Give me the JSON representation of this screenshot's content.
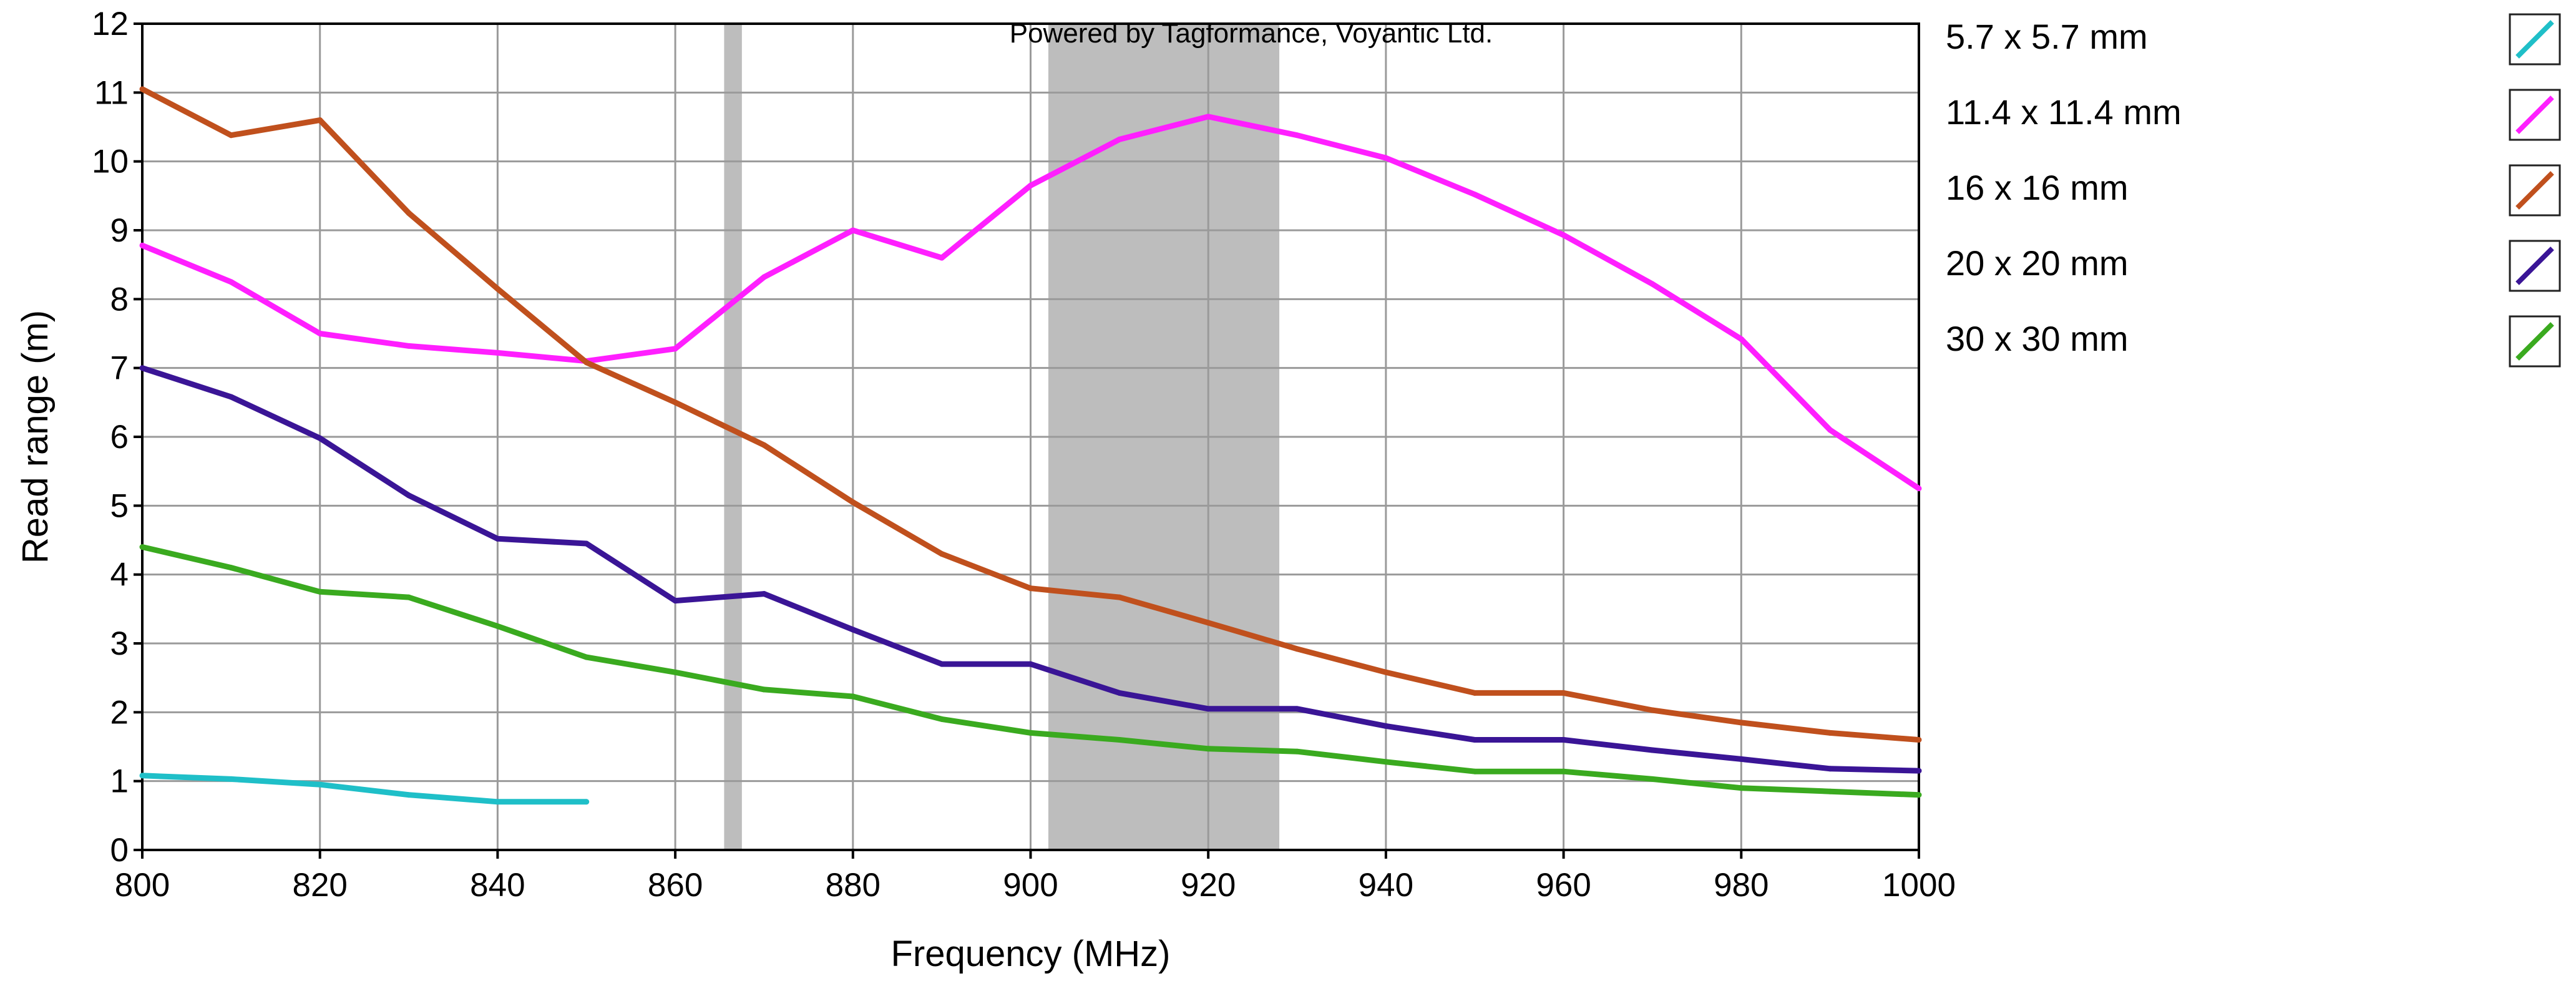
{
  "chart_data": {
    "type": "line",
    "credit": "Powered by Tagformance, Voyantic Ltd.",
    "xlabel": "Frequency (MHz)",
    "ylabel": "Read range (m)",
    "xlim": [
      800,
      1000
    ],
    "ylim": [
      0,
      12
    ],
    "x_ticks": [
      800,
      820,
      840,
      860,
      880,
      900,
      920,
      940,
      960,
      980,
      1000
    ],
    "y_ticks": [
      0,
      1,
      2,
      3,
      4,
      5,
      6,
      7,
      8,
      9,
      10,
      11,
      12
    ],
    "grid": true,
    "legend_position": "right",
    "shaded_bands": [
      {
        "from": 865.5,
        "to": 867.5
      },
      {
        "from": 902,
        "to": 928
      }
    ],
    "series": [
      {
        "name": "5.7 x 5.7 mm",
        "color": "#1fbfc8",
        "x": [
          800,
          810,
          820,
          830,
          840,
          850
        ],
        "values": [
          1.08,
          1.03,
          0.95,
          0.8,
          0.7,
          0.7
        ]
      },
      {
        "name": "11.4 x 11.4 mm",
        "color": "#ff1fff",
        "x": [
          800,
          810,
          820,
          830,
          840,
          850,
          860,
          870,
          880,
          890,
          900,
          910,
          920,
          930,
          940,
          950,
          960,
          970,
          980,
          990,
          1000
        ],
        "values": [
          8.78,
          8.25,
          7.5,
          7.32,
          7.22,
          7.1,
          7.28,
          8.32,
          9.0,
          8.6,
          9.65,
          10.32,
          10.65,
          10.38,
          10.05,
          9.52,
          8.93,
          8.22,
          7.42,
          6.1,
          5.25
        ]
      },
      {
        "name": "16 x 16 mm",
        "color": "#c0501d",
        "x": [
          800,
          810,
          820,
          830,
          840,
          850,
          860,
          870,
          880,
          890,
          900,
          910,
          920,
          930,
          940,
          950,
          960,
          970,
          980,
          990,
          1000
        ],
        "values": [
          11.05,
          10.38,
          10.6,
          9.25,
          8.15,
          7.08,
          6.5,
          5.88,
          5.05,
          4.3,
          3.8,
          3.67,
          3.3,
          2.92,
          2.58,
          2.28,
          2.28,
          2.03,
          1.85,
          1.7,
          1.6
        ]
      },
      {
        "name": "20 x 20 mm",
        "color": "#3a1596",
        "x": [
          800,
          810,
          820,
          830,
          840,
          850,
          860,
          870,
          880,
          890,
          900,
          910,
          920,
          930,
          940,
          950,
          960,
          970,
          980,
          990,
          1000
        ],
        "values": [
          7.0,
          6.58,
          5.98,
          5.15,
          4.52,
          4.45,
          3.62,
          3.72,
          3.2,
          2.7,
          2.7,
          2.28,
          2.05,
          2.05,
          1.8,
          1.6,
          1.6,
          1.45,
          1.32,
          1.18,
          1.15
        ]
      },
      {
        "name": "30 x 30 mm",
        "color": "#3aaa1f",
        "x": [
          800,
          810,
          820,
          830,
          840,
          850,
          860,
          870,
          880,
          890,
          900,
          910,
          920,
          930,
          940,
          950,
          960,
          970,
          980,
          990,
          1000
        ],
        "values": [
          4.4,
          4.1,
          3.75,
          3.67,
          3.25,
          2.8,
          2.58,
          2.33,
          2.23,
          1.9,
          1.7,
          1.6,
          1.47,
          1.43,
          1.28,
          1.14,
          1.14,
          1.03,
          0.9,
          0.85,
          0.8
        ]
      }
    ]
  }
}
